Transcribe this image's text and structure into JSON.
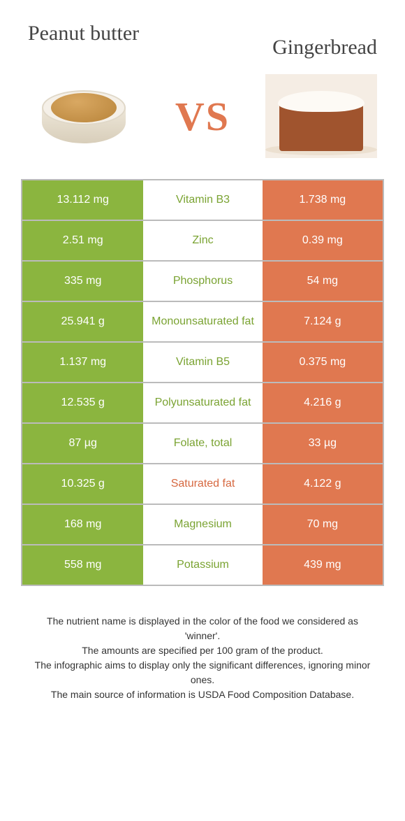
{
  "foods": {
    "left": {
      "name": "Peanut butter",
      "color": "#8bb53f"
    },
    "right": {
      "name": "Gingerbread",
      "color": "#e07850"
    }
  },
  "vs_label": "VS",
  "colors": {
    "green": "#8bb53f",
    "coral": "#e07850",
    "label_green": "#7aa332",
    "label_coral": "#d66840",
    "border": "#bbbbbb",
    "background": "#ffffff"
  },
  "rows": [
    {
      "nutrient": "Vitamin B3",
      "left": "13.112 mg",
      "right": "1.738 mg",
      "winner": "left"
    },
    {
      "nutrient": "Zinc",
      "left": "2.51 mg",
      "right": "0.39 mg",
      "winner": "left"
    },
    {
      "nutrient": "Phosphorus",
      "left": "335 mg",
      "right": "54 mg",
      "winner": "left"
    },
    {
      "nutrient": "Monounsaturated fat",
      "left": "25.941 g",
      "right": "7.124 g",
      "winner": "left"
    },
    {
      "nutrient": "Vitamin B5",
      "left": "1.137 mg",
      "right": "0.375 mg",
      "winner": "left"
    },
    {
      "nutrient": "Polyunsaturated fat",
      "left": "12.535 g",
      "right": "4.216 g",
      "winner": "left"
    },
    {
      "nutrient": "Folate, total",
      "left": "87 µg",
      "right": "33 µg",
      "winner": "left"
    },
    {
      "nutrient": "Saturated fat",
      "left": "10.325 g",
      "right": "4.122 g",
      "winner": "right"
    },
    {
      "nutrient": "Magnesium",
      "left": "168 mg",
      "right": "70 mg",
      "winner": "left"
    },
    {
      "nutrient": "Potassium",
      "left": "558 mg",
      "right": "439 mg",
      "winner": "left"
    }
  ],
  "footnotes": [
    "The nutrient name is displayed in the color of the food we considered as 'winner'.",
    "The amounts are specified per 100 gram of the product.",
    "The infographic aims to display only the significant differences, ignoring minor ones.",
    "The main source of information is USDA Food Composition Database."
  ]
}
